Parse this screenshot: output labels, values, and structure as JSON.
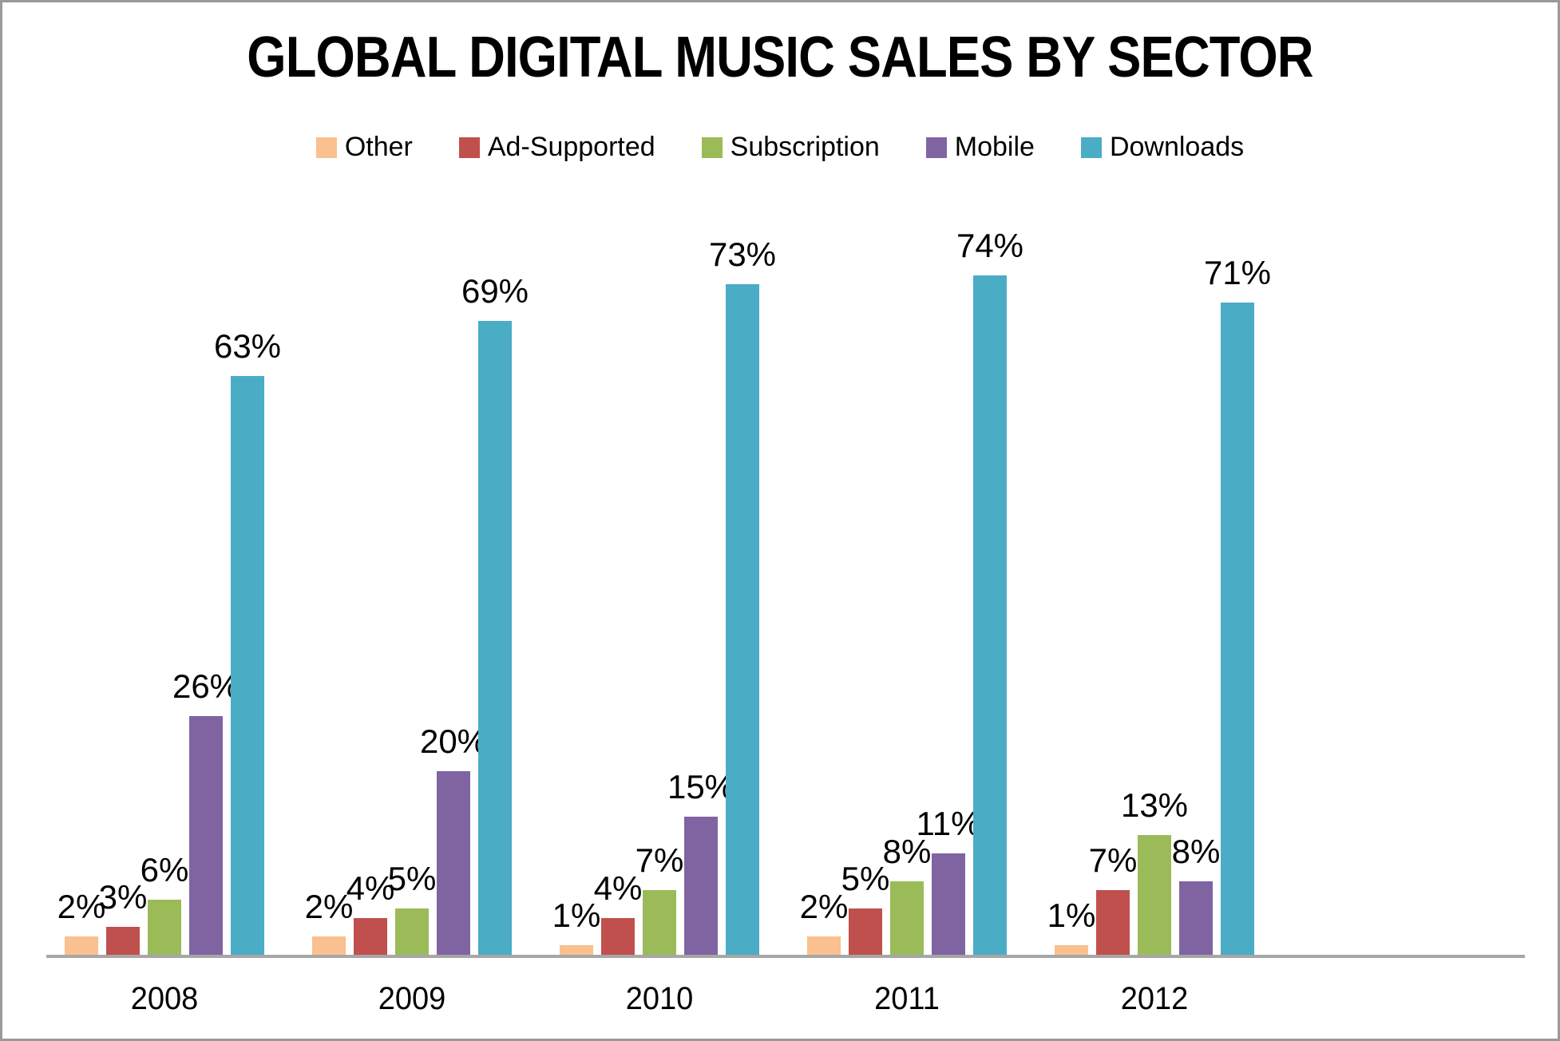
{
  "title": "GLOBAL DIGITAL MUSIC SALES BY SECTOR",
  "chart_data": {
    "type": "bar",
    "title": "GLOBAL DIGITAL MUSIC SALES BY SECTOR",
    "categories": [
      "2008",
      "2009",
      "2010",
      "2011",
      "2012"
    ],
    "series": [
      {
        "name": "Other",
        "color": "#FAC08F",
        "values": [
          2,
          2,
          1,
          2,
          1
        ]
      },
      {
        "name": "Ad-Supported",
        "color": "#C0504D",
        "values": [
          3,
          4,
          4,
          5,
          7
        ]
      },
      {
        "name": "Subscription",
        "color": "#9BBB59",
        "values": [
          6,
          5,
          7,
          8,
          13
        ]
      },
      {
        "name": "Mobile",
        "color": "#8064A2",
        "values": [
          26,
          20,
          15,
          11,
          8
        ]
      },
      {
        "name": "Downloads",
        "color": "#4BACC6",
        "values": [
          63,
          69,
          73,
          74,
          71
        ]
      }
    ],
    "data_labels": [
      [
        "2%",
        "2%",
        "1%",
        "2%",
        "1%"
      ],
      [
        "3%",
        "4%",
        "4%",
        "5%",
        "7%"
      ],
      [
        "6%",
        "5%",
        "7%",
        "8%",
        "13%"
      ],
      [
        "26%",
        "20%",
        "15%",
        "11%",
        "8%"
      ],
      [
        "63%",
        "69%",
        "73%",
        "74%",
        "71%"
      ]
    ],
    "label_suffix": "%",
    "xlabel": "",
    "ylabel": "",
    "ylim": [
      0,
      80
    ],
    "grid": false,
    "legend_position": "top",
    "axis_color": "#A6A6A6",
    "background": "#FFFFFF"
  }
}
